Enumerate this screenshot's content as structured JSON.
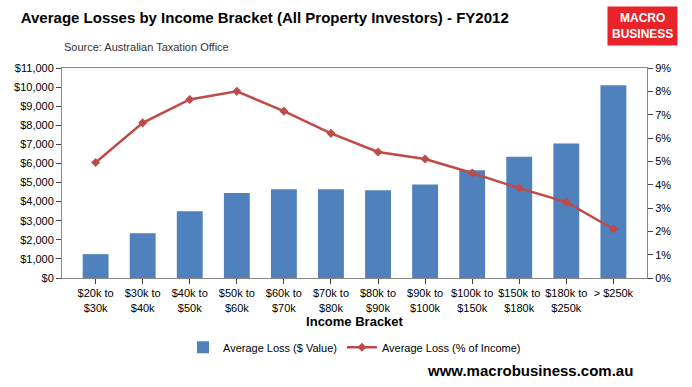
{
  "chart_data": {
    "type": "bar",
    "title": "Average Losses by Income Bracket (All Property Investors) - FY2012",
    "subtitle": "Source: Australian Taxation Office",
    "x_label": "Income Bracket",
    "annotations": [
      {
        "text": "MACRO BUSINESS"
      },
      {
        "text": "www.macrobusiness.com.au"
      }
    ],
    "categories": [
      "$20k to $30k",
      "$30k to $40k",
      "$40k to $50k",
      "$50k to $60k",
      "$60k to $70k",
      "$70k to $80k",
      "$80k to $90k",
      "$90k to $100k",
      "$100k to $150k",
      "$150k to $180k",
      "$180k to $250k",
      "> $250k"
    ],
    "series": [
      {
        "name": "Average Loss ($ Value)",
        "type": "bar",
        "color": "#4f81bd",
        "values": [
          1250,
          2350,
          3500,
          4450,
          4650,
          4650,
          4600,
          4900,
          5650,
          6350,
          7050,
          10100
        ]
      },
      {
        "name": "Average Loss (% of Income)",
        "type": "line",
        "color": "#be4b48",
        "marker": "diamond",
        "axis": "y2",
        "values": [
          4.95,
          6.65,
          7.65,
          8.0,
          7.15,
          6.2,
          5.4,
          5.1,
          4.5,
          3.85,
          3.25,
          2.1
        ]
      }
    ],
    "ylim": [
      0,
      11000
    ],
    "yticks": [
      {
        "value": 0,
        "label": "$0"
      },
      {
        "value": 1000,
        "label": "$1,000"
      },
      {
        "value": 2000,
        "label": "$2,000"
      },
      {
        "value": 3000,
        "label": "$3,000"
      },
      {
        "value": 4000,
        "label": "$4,000"
      },
      {
        "value": 5000,
        "label": "$5,000"
      },
      {
        "value": 6000,
        "label": "$6,000"
      },
      {
        "value": 7000,
        "label": "$7,000"
      },
      {
        "value": 8000,
        "label": "$8,000"
      },
      {
        "value": 9000,
        "label": "$9,000"
      },
      {
        "value": 10000,
        "label": "$10,000"
      },
      {
        "value": 11000,
        "label": "$11,000"
      }
    ],
    "y2lim": [
      0,
      9
    ],
    "y2ticks": [
      {
        "value": 0,
        "label": "0%"
      },
      {
        "value": 1,
        "label": "1%"
      },
      {
        "value": 2,
        "label": "2%"
      },
      {
        "value": 3,
        "label": "3%"
      },
      {
        "value": 4,
        "label": "4%"
      },
      {
        "value": 5,
        "label": "5%"
      },
      {
        "value": 6,
        "label": "6%"
      },
      {
        "value": 7,
        "label": "7%"
      },
      {
        "value": 8,
        "label": "8%"
      },
      {
        "value": 9,
        "label": "9%"
      }
    ],
    "grid": false,
    "legend": "bottom"
  }
}
